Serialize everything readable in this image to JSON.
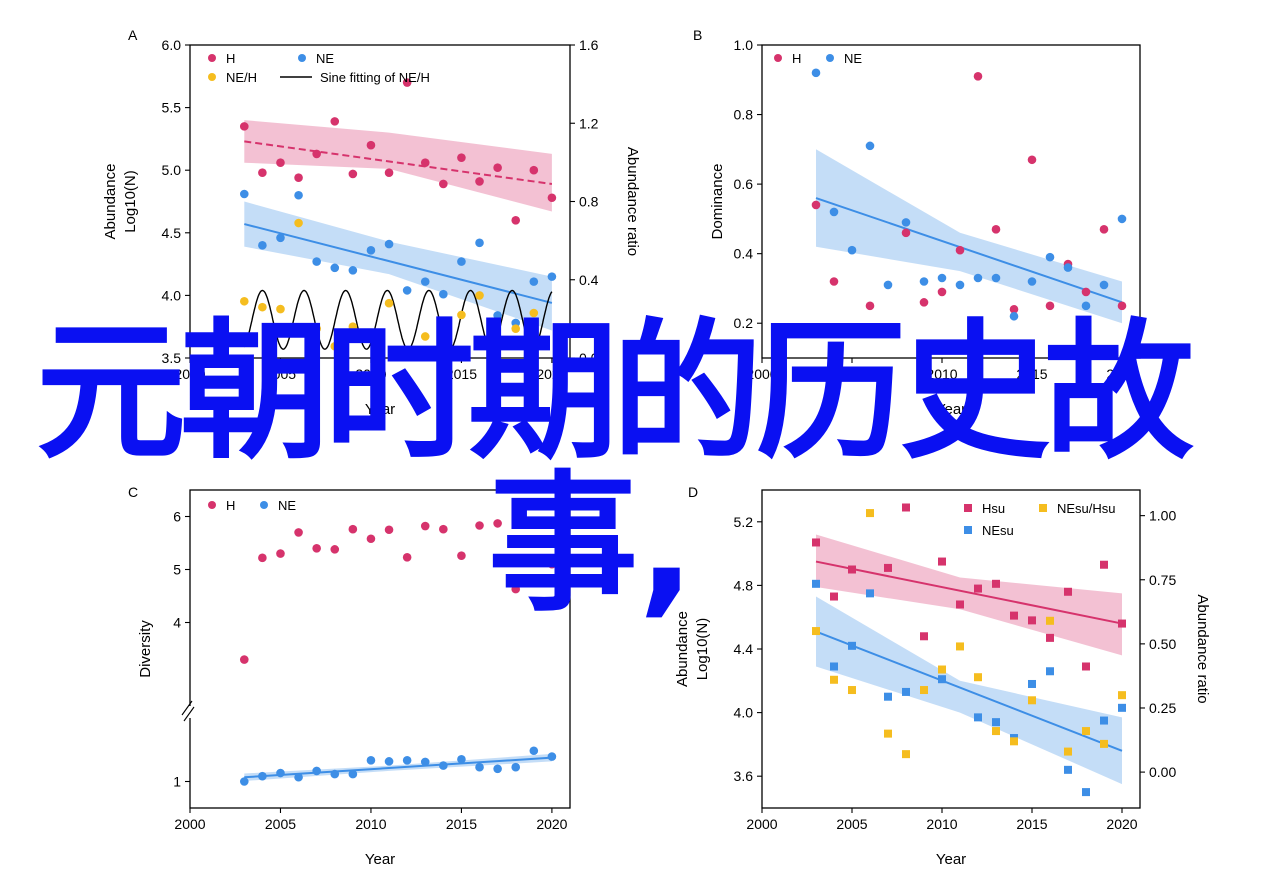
{
  "overlay": {
    "line1": "元朝时期的历史故",
    "line2": "事,"
  },
  "colors": {
    "H": "#d6336c",
    "NE": "#3d8ee6",
    "ratio": "#f5bd1f",
    "sine": "#000000"
  },
  "chart_data": [
    {
      "id": "A",
      "panel_label": "A",
      "type": "scatter",
      "xlabel": "Year",
      "ylabel": "Abundance Log10(N)",
      "ylabel_right": "Abundance ratio",
      "xlim": [
        2000,
        2021
      ],
      "ylim": [
        3.5,
        6.0
      ],
      "ylim_right": [
        0.0,
        1.6
      ],
      "xticks": [
        "2000",
        "2005",
        "2010",
        "2015",
        "2020"
      ],
      "yticks": [
        "3.5",
        "4.0",
        "4.5",
        "5.0",
        "5.5",
        "6.0"
      ],
      "yticks_right": [
        "0.0",
        "0.4",
        "0.8",
        "1.2",
        "1.6"
      ],
      "legend": [
        "H",
        "NE",
        "NE/H",
        "Sine fitting of NE/H"
      ],
      "series": [
        {
          "name": "H",
          "color": "#d6336c",
          "x": [
            2003,
            2004,
            2005,
            2006,
            2007,
            2008,
            2009,
            2010,
            2011,
            2012,
            2013,
            2014,
            2015,
            2016,
            2017,
            2018,
            2019,
            2020
          ],
          "y": [
            5.35,
            4.98,
            5.06,
            4.94,
            5.13,
            5.39,
            4.97,
            5.2,
            4.98,
            5.7,
            5.06,
            4.89,
            5.1,
            4.91,
            5.02,
            4.6,
            5.0,
            4.78
          ],
          "fit": [
            [
              2003,
              5.23
            ],
            [
              2020,
              4.89
            ]
          ],
          "band": [
            [
              2003,
              5.4,
              5.06
            ],
            [
              2011,
              5.3,
              5.01
            ],
            [
              2020,
              5.13,
              4.67
            ]
          ]
        },
        {
          "name": "NE",
          "color": "#3d8ee6",
          "x": [
            2003,
            2004,
            2005,
            2006,
            2007,
            2008,
            2009,
            2010,
            2011,
            2012,
            2013,
            2014,
            2015,
            2016,
            2017,
            2018,
            2019,
            2020
          ],
          "y": [
            4.81,
            4.4,
            4.46,
            4.8,
            4.27,
            4.22,
            4.2,
            4.36,
            4.41,
            4.04,
            4.11,
            4.01,
            4.27,
            4.42,
            3.84,
            3.78,
            4.11,
            4.15
          ],
          "fit": [
            [
              2003,
              4.57
            ],
            [
              2020,
              3.94
            ]
          ],
          "band": [
            [
              2003,
              4.75,
              4.39
            ],
            [
              2011,
              4.43,
              4.17
            ],
            [
              2020,
              4.15,
              3.72
            ]
          ]
        },
        {
          "name": "NE/H",
          "color": "#f5bd1f",
          "axis": "right",
          "x": [
            2003,
            2004,
            2005,
            2006,
            2007,
            2008,
            2009,
            2010,
            2011,
            2012,
            2013,
            2014,
            2015,
            2016,
            2017,
            2018,
            2019
          ],
          "y": [
            0.29,
            0.26,
            0.25,
            0.69,
            0.15,
            0.06,
            0.16,
            0.13,
            0.28,
            0.01,
            0.11,
            0.13,
            0.22,
            0.32,
            0.07,
            0.15,
            0.23
          ]
        }
      ],
      "sine": {
        "axis": "right",
        "x_start": 2003,
        "x_end": 2020,
        "center": 0.195,
        "amplitude": 0.15,
        "period": 2.3
      }
    },
    {
      "id": "B",
      "panel_label": "B",
      "type": "scatter",
      "xlabel": "Year",
      "ylabel": "Dominance",
      "xlim": [
        2000,
        2021
      ],
      "ylim": [
        0.1,
        1.0
      ],
      "xticks": [
        "2000",
        "2005",
        "2010",
        "2015",
        "2020"
      ],
      "yticks": [
        "0.2",
        "0.4",
        "0.6",
        "0.8",
        "1.0"
      ],
      "legend": [
        "H",
        "NE"
      ],
      "series": [
        {
          "name": "H",
          "color": "#d6336c",
          "x": [
            2003,
            2004,
            2006,
            2008,
            2009,
            2010,
            2011,
            2012,
            2013,
            2014,
            2015,
            2016,
            2017,
            2018,
            2019,
            2020
          ],
          "y": [
            0.54,
            0.32,
            0.25,
            0.46,
            0.26,
            0.29,
            0.41,
            0.91,
            0.47,
            0.24,
            0.67,
            0.25,
            0.37,
            0.29,
            0.47,
            0.25
          ]
        },
        {
          "name": "NE",
          "color": "#3d8ee6",
          "x": [
            2003,
            2004,
            2005,
            2006,
            2007,
            2008,
            2009,
            2010,
            2011,
            2012,
            2013,
            2014,
            2015,
            2016,
            2017,
            2018,
            2019,
            2020
          ],
          "y": [
            0.92,
            0.52,
            0.41,
            0.71,
            0.31,
            0.49,
            0.32,
            0.33,
            0.31,
            0.33,
            0.33,
            0.22,
            0.32,
            0.39,
            0.36,
            0.25,
            0.31,
            0.5
          ],
          "fit": [
            [
              2003,
              0.56
            ],
            [
              2020,
              0.26
            ]
          ],
          "band": [
            [
              2003,
              0.7,
              0.42
            ],
            [
              2011,
              0.46,
              0.35
            ],
            [
              2020,
              0.32,
              0.2
            ]
          ]
        }
      ]
    },
    {
      "id": "C",
      "panel_label": "C",
      "type": "scatter",
      "xlabel": "Year",
      "ylabel": "Diversity",
      "xlim": [
        2000,
        2021
      ],
      "ylim": [
        0.5,
        6.5
      ],
      "axis_break": true,
      "xticks": [
        "2000",
        "2005",
        "2010",
        "2015",
        "2020"
      ],
      "yticks": [
        "1",
        "4",
        "5",
        "6"
      ],
      "legend": [
        "H",
        "NE"
      ],
      "series": [
        {
          "name": "H",
          "color": "#d6336c",
          "x": [
            2003,
            2004,
            2005,
            2006,
            2007,
            2008,
            2009,
            2010,
            2011,
            2012,
            2013,
            2014,
            2015,
            2016,
            2017,
            2018,
            2019,
            2020
          ],
          "y": [
            3.3,
            5.22,
            5.3,
            5.7,
            5.4,
            5.38,
            5.76,
            5.58,
            5.75,
            5.23,
            5.82,
            5.76,
            5.26,
            5.83,
            5.87,
            4.63,
            4.77,
            5.1
          ]
        },
        {
          "name": "NE",
          "color": "#3d8ee6",
          "x": [
            2003,
            2004,
            2005,
            2006,
            2007,
            2008,
            2009,
            2010,
            2011,
            2012,
            2013,
            2014,
            2015,
            2016,
            2017,
            2018,
            2019,
            2020
          ],
          "y": [
            1.0,
            1.1,
            1.16,
            1.08,
            1.2,
            1.14,
            1.14,
            1.4,
            1.38,
            1.4,
            1.37,
            1.3,
            1.42,
            1.27,
            1.24,
            1.27,
            1.58,
            1.47
          ],
          "fit": [
            [
              2003,
              1.08
            ],
            [
              2020,
              1.45
            ]
          ],
          "band": [
            [
              2003,
              1.15,
              1.01
            ],
            [
              2011,
              1.3,
              1.2
            ],
            [
              2020,
              1.52,
              1.38
            ]
          ]
        }
      ]
    },
    {
      "id": "D",
      "panel_label": "D",
      "type": "scatter",
      "xlabel": "Year",
      "ylabel": "Abundance Log10(N)",
      "ylabel_right": "Abundance ratio",
      "xlim": [
        2000,
        2021
      ],
      "ylim": [
        3.4,
        5.4
      ],
      "ylim_right": [
        -0.14,
        1.1
      ],
      "xticks": [
        "2000",
        "2005",
        "2010",
        "2015",
        "2020"
      ],
      "yticks": [
        "3.6",
        "4.0",
        "4.4",
        "4.8",
        "5.2"
      ],
      "yticks_right": [
        "0.00",
        "0.25",
        "0.50",
        "0.75",
        "1.00"
      ],
      "legend": [
        "Hsu",
        "NEsu",
        "NEsu/Hsu"
      ],
      "series": [
        {
          "name": "Hsu",
          "color": "#d6336c",
          "x": [
            2003,
            2004,
            2005,
            2007,
            2008,
            2009,
            2010,
            2011,
            2012,
            2013,
            2014,
            2015,
            2016,
            2017,
            2018,
            2019,
            2020
          ],
          "y": [
            5.07,
            4.73,
            4.9,
            4.91,
            5.29,
            4.48,
            4.95,
            4.68,
            4.78,
            4.81,
            4.61,
            4.58,
            4.47,
            4.76,
            4.29,
            4.93,
            4.56
          ],
          "fit": [
            [
              2003,
              4.95
            ],
            [
              2020,
              4.56
            ]
          ],
          "band": [
            [
              2003,
              5.12,
              4.79
            ],
            [
              2011,
              4.85,
              4.65
            ],
            [
              2020,
              4.75,
              4.36
            ]
          ]
        },
        {
          "name": "NEsu",
          "color": "#3d8ee6",
          "x": [
            2003,
            2004,
            2005,
            2006,
            2007,
            2008,
            2010,
            2012,
            2013,
            2014,
            2015,
            2016,
            2017,
            2018,
            2019,
            2020
          ],
          "y": [
            4.81,
            4.29,
            4.42,
            4.75,
            4.1,
            4.13,
            4.21,
            3.97,
            3.94,
            3.84,
            4.18,
            4.26,
            3.64,
            3.5,
            3.95,
            4.03
          ],
          "fit": [
            [
              2003,
              4.51
            ],
            [
              2020,
              3.76
            ]
          ],
          "band": [
            [
              2003,
              4.73,
              4.29
            ],
            [
              2011,
              4.2,
              4.0
            ],
            [
              2020,
              3.97,
              3.55
            ]
          ]
        },
        {
          "name": "NEsu/Hsu",
          "color": "#f5bd1f",
          "axis": "right",
          "x": [
            2003,
            2004,
            2005,
            2006,
            2007,
            2008,
            2009,
            2010,
            2011,
            2012,
            2013,
            2014,
            2015,
            2016,
            2017,
            2018,
            2019,
            2020
          ],
          "y": [
            0.55,
            0.36,
            0.32,
            1.01,
            0.15,
            0.07,
            0.32,
            0.4,
            0.49,
            0.37,
            0.16,
            0.12,
            0.28,
            0.59,
            0.08,
            0.16,
            0.11,
            0.3
          ]
        }
      ]
    }
  ]
}
